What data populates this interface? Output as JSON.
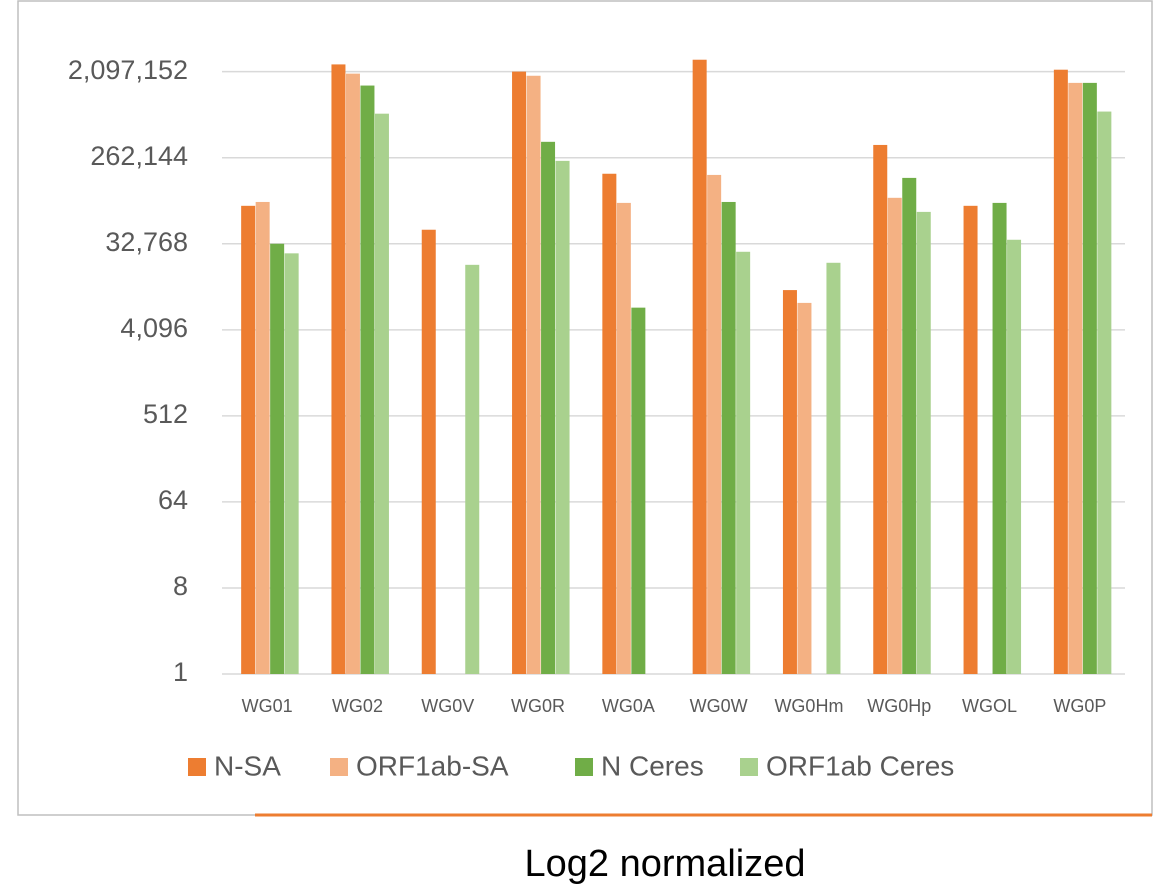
{
  "chart_data": {
    "type": "bar",
    "categories": [
      "WG01",
      "WG02",
      "WG0V",
      "WG0R",
      "WG0A",
      "WG0W",
      "WG0Hm",
      "WG0Hp",
      "WGOL",
      "WG0P"
    ],
    "series": [
      {
        "name": "N-SA",
        "color": "#ED7D31",
        "values": [
          82000,
          2500000,
          46000,
          2100000,
          178000,
          2800000,
          10700,
          357000,
          82000,
          2200000
        ]
      },
      {
        "name": "ORF1ab-SA",
        "color": "#F4B183",
        "values": [
          90000,
          2000000,
          null,
          1900000,
          88000,
          173000,
          7850,
          99500,
          null,
          1600000
        ]
      },
      {
        "name": "N Ceres",
        "color": "#70AD47",
        "values": [
          32768,
          1500000,
          null,
          385000,
          7000,
          90000,
          null,
          161000,
          88000,
          1600000
        ]
      },
      {
        "name": "ORF1ab Ceres",
        "color": "#A9D18E",
        "values": [
          26000,
          760000,
          19700,
          243000,
          null,
          27000,
          20700,
          70800,
          36100,
          800000
        ]
      }
    ],
    "log_scale": true,
    "log_base": 2,
    "ylim": [
      1,
      4194304
    ],
    "yticks": [
      1,
      8,
      64,
      512,
      {
        "value": 4096,
        "label": "4,096"
      },
      {
        "value": 32768,
        "label": "32,768"
      },
      {
        "value": 262144,
        "label": "262,144"
      },
      {
        "value": 2097152,
        "label": "2,097,152"
      }
    ],
    "grid": true,
    "legend": "bottom"
  },
  "caption": "Log2 normalized"
}
